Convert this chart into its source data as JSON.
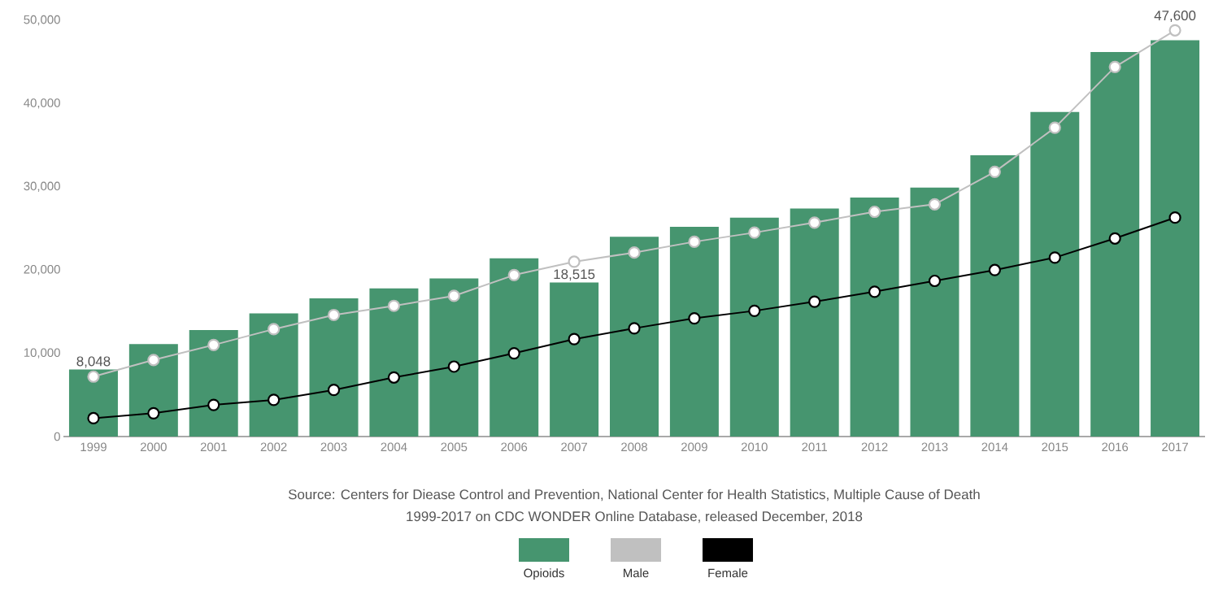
{
  "chart_data": {
    "type": "bar",
    "categories": [
      "1999",
      "2000",
      "2001",
      "2002",
      "2003",
      "2004",
      "2005",
      "2006",
      "2007",
      "2008",
      "2009",
      "2010",
      "2011",
      "2012",
      "2013",
      "2014",
      "2015",
      "2016",
      "2017"
    ],
    "series": [
      {
        "name": "Opioids",
        "color": "#46956f",
        "values": [
          8048,
          11100,
          12800,
          14800,
          16600,
          17800,
          19000,
          21400,
          18515,
          24000,
          25200,
          26300,
          27400,
          28700,
          29900,
          33800,
          39000,
          46200,
          47600
        ],
        "value_labels": [
          "8,048",
          null,
          null,
          null,
          null,
          null,
          null,
          null,
          "18,515",
          null,
          null,
          null,
          null,
          null,
          null,
          null,
          null,
          null,
          "47,600"
        ]
      },
      {
        "name": "Male",
        "type": "line",
        "color": "#c0c0c0",
        "values": [
          7200,
          9200,
          11000,
          12900,
          14600,
          15700,
          16900,
          19400,
          21000,
          22100,
          23400,
          24500,
          25700,
          27000,
          27900,
          31800,
          37100,
          44400,
          48800
        ]
      },
      {
        "name": "Female",
        "type": "line",
        "color": "#000000",
        "values": [
          2200,
          2800,
          3800,
          4400,
          5600,
          7100,
          8400,
          10000,
          11700,
          13000,
          14200,
          15100,
          16200,
          17400,
          18700,
          20000,
          21500,
          23800,
          26300
        ]
      }
    ],
    "ylim": [
      0,
      50000
    ],
    "yticks": [
      0,
      {
        "value": 10000,
        "label": "10,000"
      },
      {
        "value": 20000,
        "label": "20,000"
      },
      {
        "value": 30000,
        "label": "30,000"
      },
      {
        "value": 40000,
        "label": "40,000"
      },
      {
        "value": 50000,
        "label": "50,000"
      }
    ],
    "marker": "circle",
    "line_style": "solid",
    "grid": false,
    "legend": "bottom",
    "annotations": [
      "Source: Centers for Diease Control and Prevention, National Center for Health Statistics, Multiple Cause of Death",
      "1999-2017 on CDC WONDER Online Database, released December, 2018"
    ]
  }
}
